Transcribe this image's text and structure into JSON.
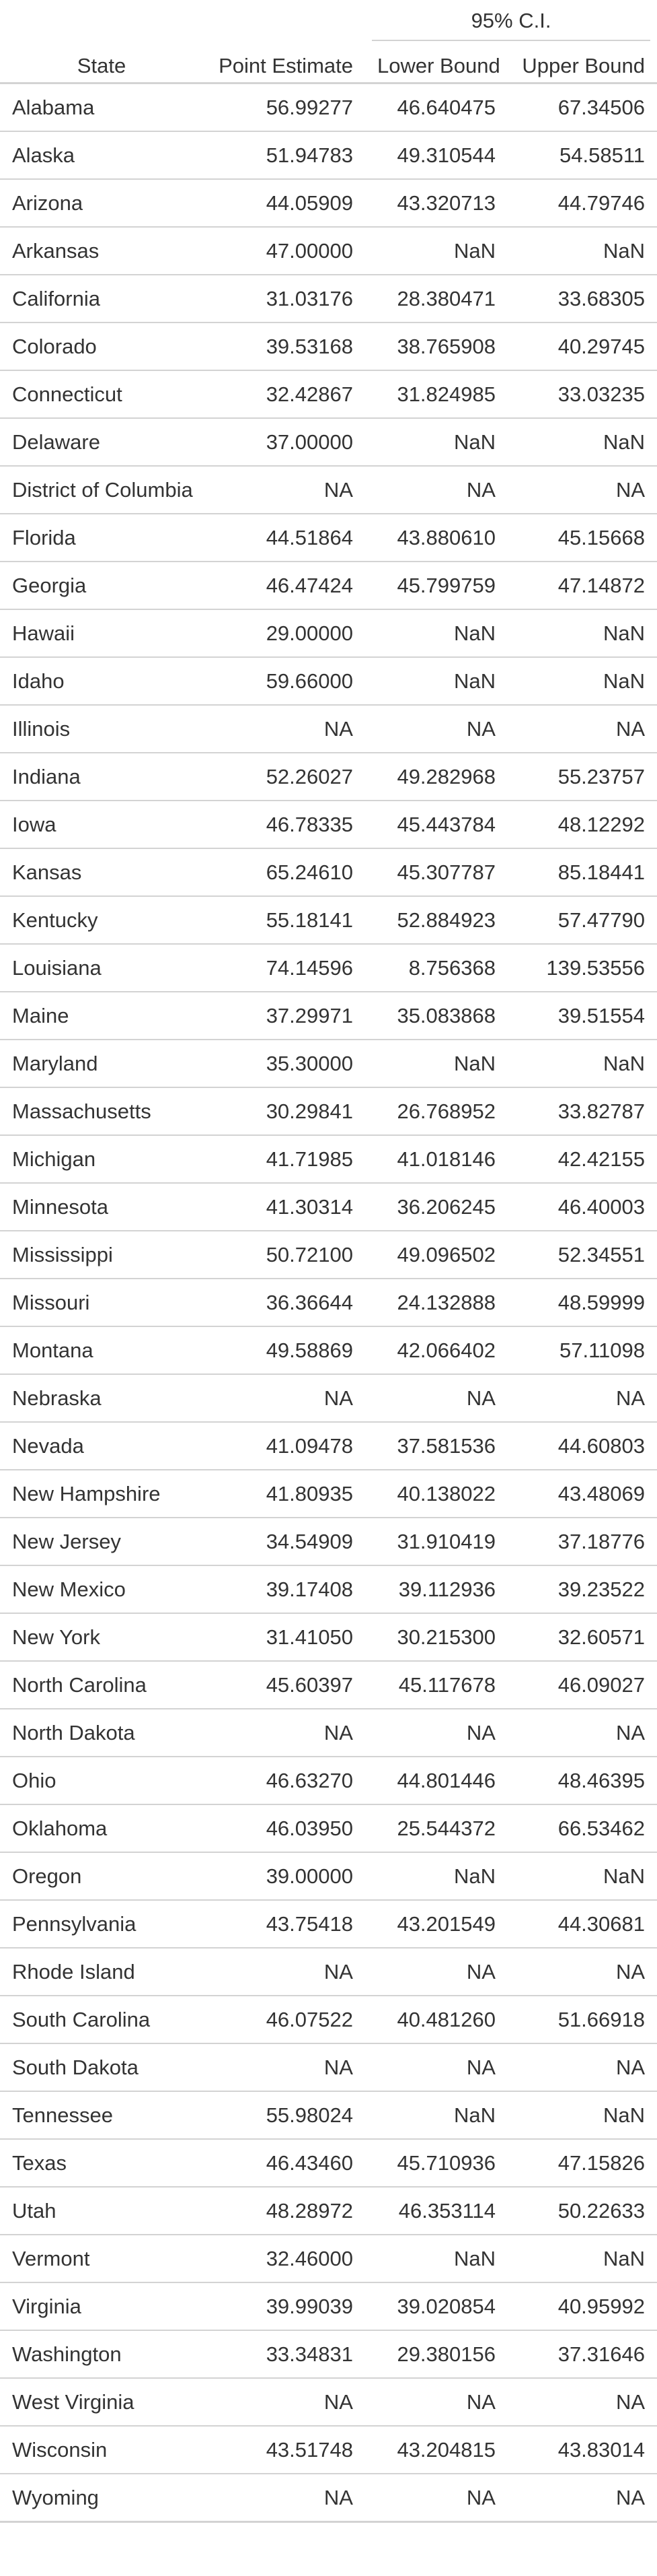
{
  "table": {
    "spanner_label": "95% C.I.",
    "columns": {
      "state": "State",
      "point_estimate": "Point Estimate",
      "lower_bound": "Lower Bound",
      "upper_bound": "Upper Bound"
    },
    "rows": [
      {
        "state": "Alabama",
        "pe": "56.99277",
        "lb": "46.640475",
        "ub": "67.34506"
      },
      {
        "state": "Alaska",
        "pe": "51.94783",
        "lb": "49.310544",
        "ub": "54.58511"
      },
      {
        "state": "Arizona",
        "pe": "44.05909",
        "lb": "43.320713",
        "ub": "44.79746"
      },
      {
        "state": "Arkansas",
        "pe": "47.00000",
        "lb": "NaN",
        "ub": "NaN"
      },
      {
        "state": "California",
        "pe": "31.03176",
        "lb": "28.380471",
        "ub": "33.68305"
      },
      {
        "state": "Colorado",
        "pe": "39.53168",
        "lb": "38.765908",
        "ub": "40.29745"
      },
      {
        "state": "Connecticut",
        "pe": "32.42867",
        "lb": "31.824985",
        "ub": "33.03235"
      },
      {
        "state": "Delaware",
        "pe": "37.00000",
        "lb": "NaN",
        "ub": "NaN"
      },
      {
        "state": "District of Columbia",
        "pe": "NA",
        "lb": "NA",
        "ub": "NA"
      },
      {
        "state": "Florida",
        "pe": "44.51864",
        "lb": "43.880610",
        "ub": "45.15668"
      },
      {
        "state": "Georgia",
        "pe": "46.47424",
        "lb": "45.799759",
        "ub": "47.14872"
      },
      {
        "state": "Hawaii",
        "pe": "29.00000",
        "lb": "NaN",
        "ub": "NaN"
      },
      {
        "state": "Idaho",
        "pe": "59.66000",
        "lb": "NaN",
        "ub": "NaN"
      },
      {
        "state": "Illinois",
        "pe": "NA",
        "lb": "NA",
        "ub": "NA"
      },
      {
        "state": "Indiana",
        "pe": "52.26027",
        "lb": "49.282968",
        "ub": "55.23757"
      },
      {
        "state": "Iowa",
        "pe": "46.78335",
        "lb": "45.443784",
        "ub": "48.12292"
      },
      {
        "state": "Kansas",
        "pe": "65.24610",
        "lb": "45.307787",
        "ub": "85.18441"
      },
      {
        "state": "Kentucky",
        "pe": "55.18141",
        "lb": "52.884923",
        "ub": "57.47790"
      },
      {
        "state": "Louisiana",
        "pe": "74.14596",
        "lb": "8.756368",
        "ub": "139.53556"
      },
      {
        "state": "Maine",
        "pe": "37.29971",
        "lb": "35.083868",
        "ub": "39.51554"
      },
      {
        "state": "Maryland",
        "pe": "35.30000",
        "lb": "NaN",
        "ub": "NaN"
      },
      {
        "state": "Massachusetts",
        "pe": "30.29841",
        "lb": "26.768952",
        "ub": "33.82787"
      },
      {
        "state": "Michigan",
        "pe": "41.71985",
        "lb": "41.018146",
        "ub": "42.42155"
      },
      {
        "state": "Minnesota",
        "pe": "41.30314",
        "lb": "36.206245",
        "ub": "46.40003"
      },
      {
        "state": "Mississippi",
        "pe": "50.72100",
        "lb": "49.096502",
        "ub": "52.34551"
      },
      {
        "state": "Missouri",
        "pe": "36.36644",
        "lb": "24.132888",
        "ub": "48.59999"
      },
      {
        "state": "Montana",
        "pe": "49.58869",
        "lb": "42.066402",
        "ub": "57.11098"
      },
      {
        "state": "Nebraska",
        "pe": "NA",
        "lb": "NA",
        "ub": "NA"
      },
      {
        "state": "Nevada",
        "pe": "41.09478",
        "lb": "37.581536",
        "ub": "44.60803"
      },
      {
        "state": "New Hampshire",
        "pe": "41.80935",
        "lb": "40.138022",
        "ub": "43.48069"
      },
      {
        "state": "New Jersey",
        "pe": "34.54909",
        "lb": "31.910419",
        "ub": "37.18776"
      },
      {
        "state": "New Mexico",
        "pe": "39.17408",
        "lb": "39.112936",
        "ub": "39.23522"
      },
      {
        "state": "New York",
        "pe": "31.41050",
        "lb": "30.215300",
        "ub": "32.60571"
      },
      {
        "state": "North Carolina",
        "pe": "45.60397",
        "lb": "45.117678",
        "ub": "46.09027"
      },
      {
        "state": "North Dakota",
        "pe": "NA",
        "lb": "NA",
        "ub": "NA"
      },
      {
        "state": "Ohio",
        "pe": "46.63270",
        "lb": "44.801446",
        "ub": "48.46395"
      },
      {
        "state": "Oklahoma",
        "pe": "46.03950",
        "lb": "25.544372",
        "ub": "66.53462"
      },
      {
        "state": "Oregon",
        "pe": "39.00000",
        "lb": "NaN",
        "ub": "NaN"
      },
      {
        "state": "Pennsylvania",
        "pe": "43.75418",
        "lb": "43.201549",
        "ub": "44.30681"
      },
      {
        "state": "Rhode Island",
        "pe": "NA",
        "lb": "NA",
        "ub": "NA"
      },
      {
        "state": "South Carolina",
        "pe": "46.07522",
        "lb": "40.481260",
        "ub": "51.66918"
      },
      {
        "state": "South Dakota",
        "pe": "NA",
        "lb": "NA",
        "ub": "NA"
      },
      {
        "state": "Tennessee",
        "pe": "55.98024",
        "lb": "NaN",
        "ub": "NaN"
      },
      {
        "state": "Texas",
        "pe": "46.43460",
        "lb": "45.710936",
        "ub": "47.15826"
      },
      {
        "state": "Utah",
        "pe": "48.28972",
        "lb": "46.353114",
        "ub": "50.22633"
      },
      {
        "state": "Vermont",
        "pe": "32.46000",
        "lb": "NaN",
        "ub": "NaN"
      },
      {
        "state": "Virginia",
        "pe": "39.99039",
        "lb": "39.020854",
        "ub": "40.95992"
      },
      {
        "state": "Washington",
        "pe": "33.34831",
        "lb": "29.380156",
        "ub": "37.31646"
      },
      {
        "state": "West Virginia",
        "pe": "NA",
        "lb": "NA",
        "ub": "NA"
      },
      {
        "state": "Wisconsin",
        "pe": "43.51748",
        "lb": "43.204815",
        "ub": "43.83014"
      },
      {
        "state": "Wyoming",
        "pe": "NA",
        "lb": "NA",
        "ub": "NA"
      }
    ]
  }
}
